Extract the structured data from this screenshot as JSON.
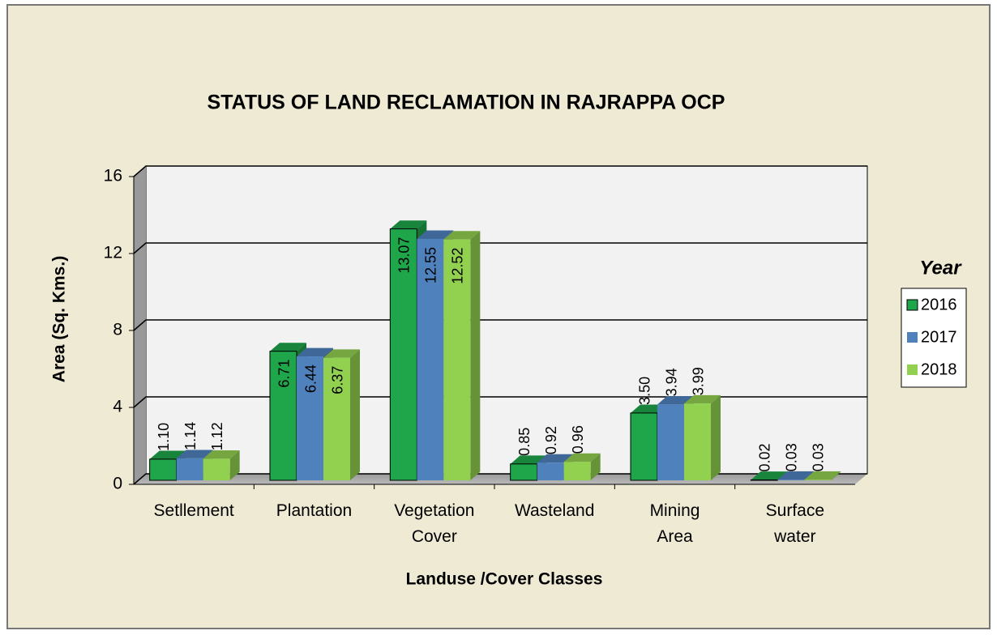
{
  "chart_data": {
    "type": "bar3d",
    "title": "STATUS OF LAND RECLAMATION  IN RAJRAPPA OCP",
    "xlabel": "Landuse /Cover Classes",
    "ylabel": "Area (Sq. Kms.)",
    "categories": [
      "Setllement",
      "Plantation",
      "Vegetation Cover",
      "Wasteland",
      "Mining Area",
      "Surface water"
    ],
    "series": [
      {
        "name": "2016",
        "color": "#1fa54a",
        "values": [
          1.1,
          6.71,
          13.07,
          0.85,
          3.5,
          0.02
        ],
        "value_labels": [
          "1.10",
          "6.71",
          "13.07",
          "0.85",
          "3.50",
          "0.02"
        ]
      },
      {
        "name": "2017",
        "color": "#4f81bd",
        "values": [
          1.14,
          6.44,
          12.55,
          0.92,
          3.94,
          0.03
        ],
        "value_labels": [
          "1.14",
          "6.44",
          "12.55",
          "0.92",
          "3.94",
          "0.03"
        ]
      },
      {
        "name": "2018",
        "color": "#92d050",
        "values": [
          1.12,
          6.37,
          12.52,
          0.96,
          3.99,
          0.03
        ],
        "value_labels": [
          "1.12",
          "6.37",
          "12.52",
          "0.96",
          "3.99",
          "0.03"
        ]
      }
    ],
    "legend_title": "Year",
    "legend": "right",
    "ylim": [
      0,
      16
    ],
    "yticks": [
      0,
      4,
      8,
      12,
      16
    ],
    "grid": true
  }
}
